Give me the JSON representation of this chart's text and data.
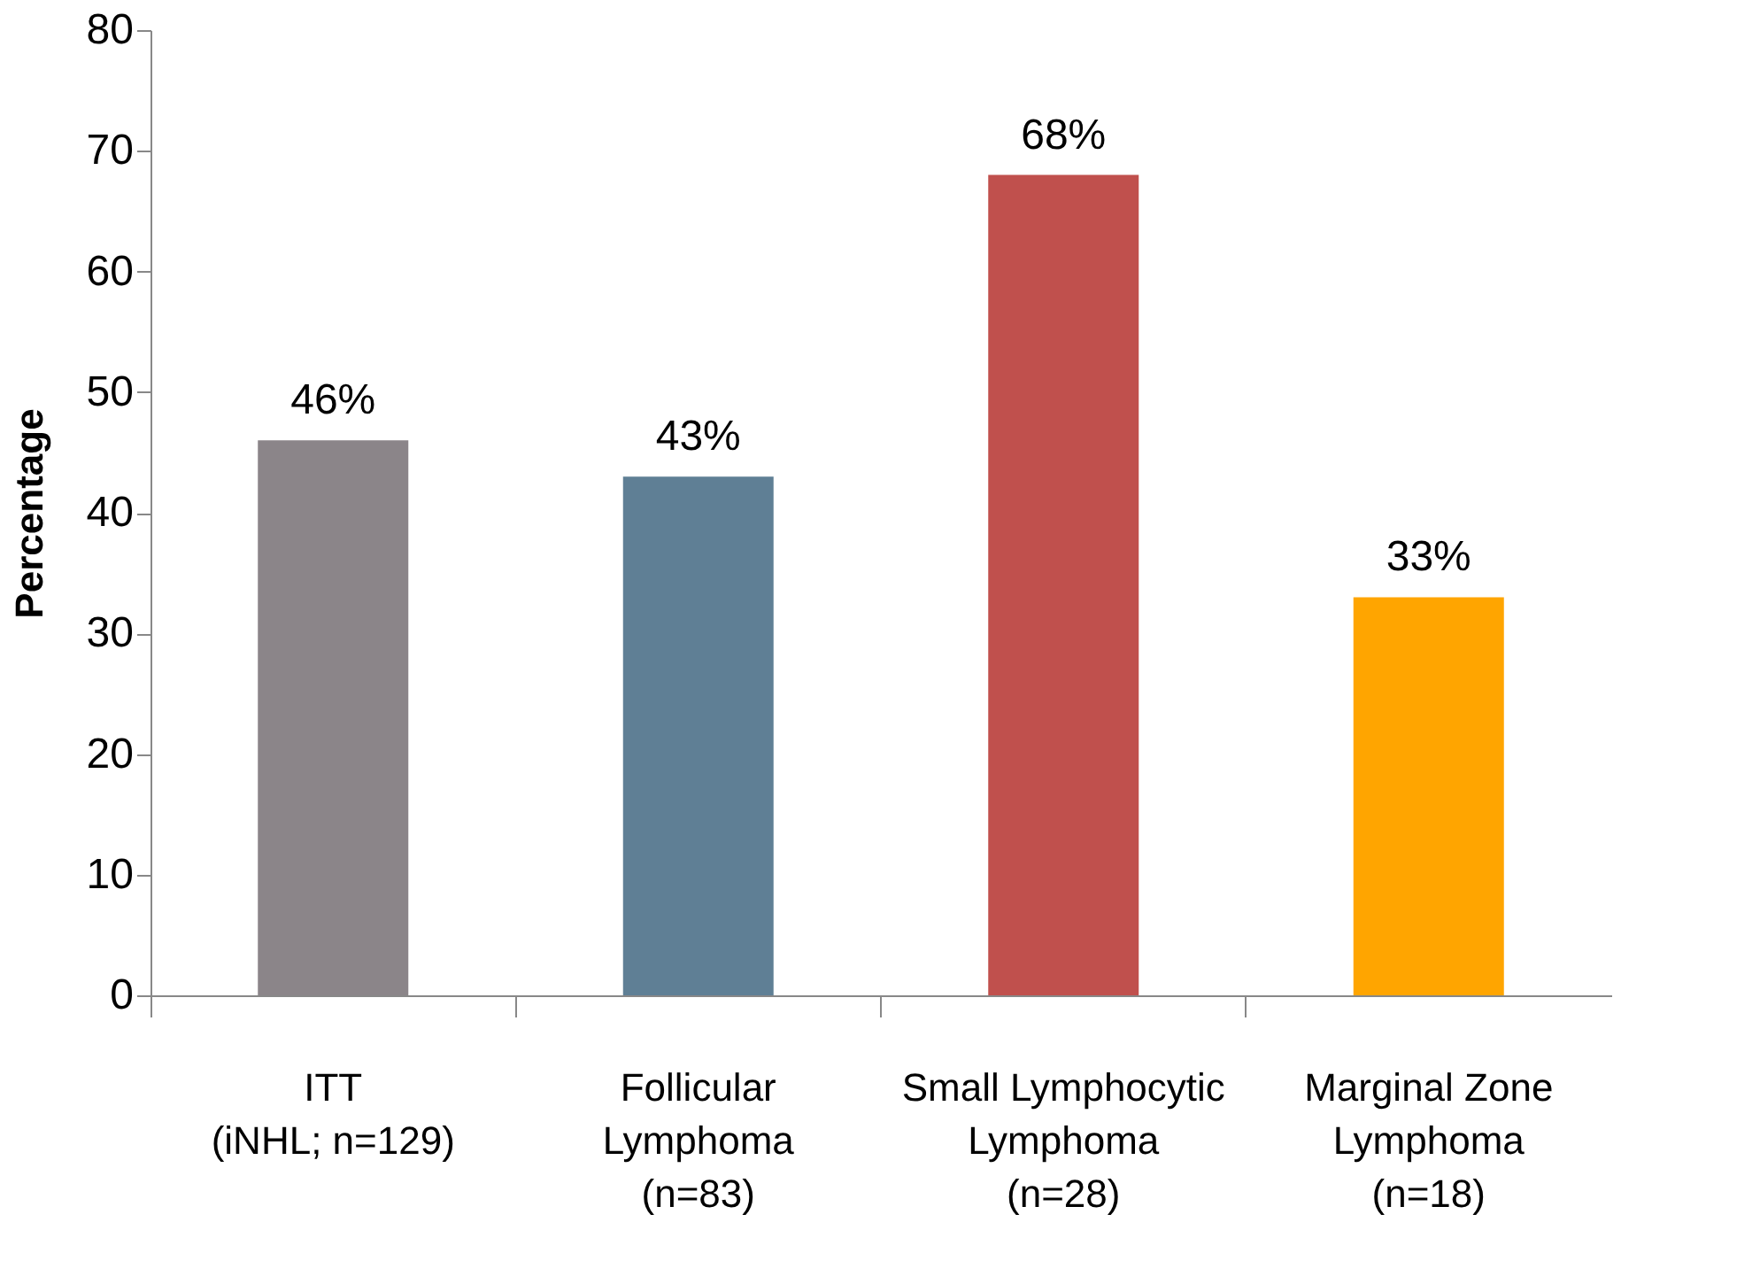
{
  "chart_data": {
    "type": "bar",
    "ylabel": "Percentage",
    "categories": [
      "ITT\n(iNHL; n=129)",
      "Follicular\nLymphoma\n(n=83)",
      "Small Lymphocytic\nLymphoma\n(n=28)",
      "Marginal Zone\nLymphoma\n(n=18)"
    ],
    "values": [
      46,
      43,
      68,
      33
    ],
    "colors": [
      "#8b8589",
      "#5f7f95",
      "#c0504d",
      "#ffa500"
    ],
    "value_labels": [
      "46%",
      "43%",
      "68%",
      "33%"
    ],
    "ylim": [
      0,
      80
    ],
    "yticks": [
      0,
      10,
      20,
      30,
      40,
      50,
      60,
      70,
      80
    ],
    "grid": false
  }
}
